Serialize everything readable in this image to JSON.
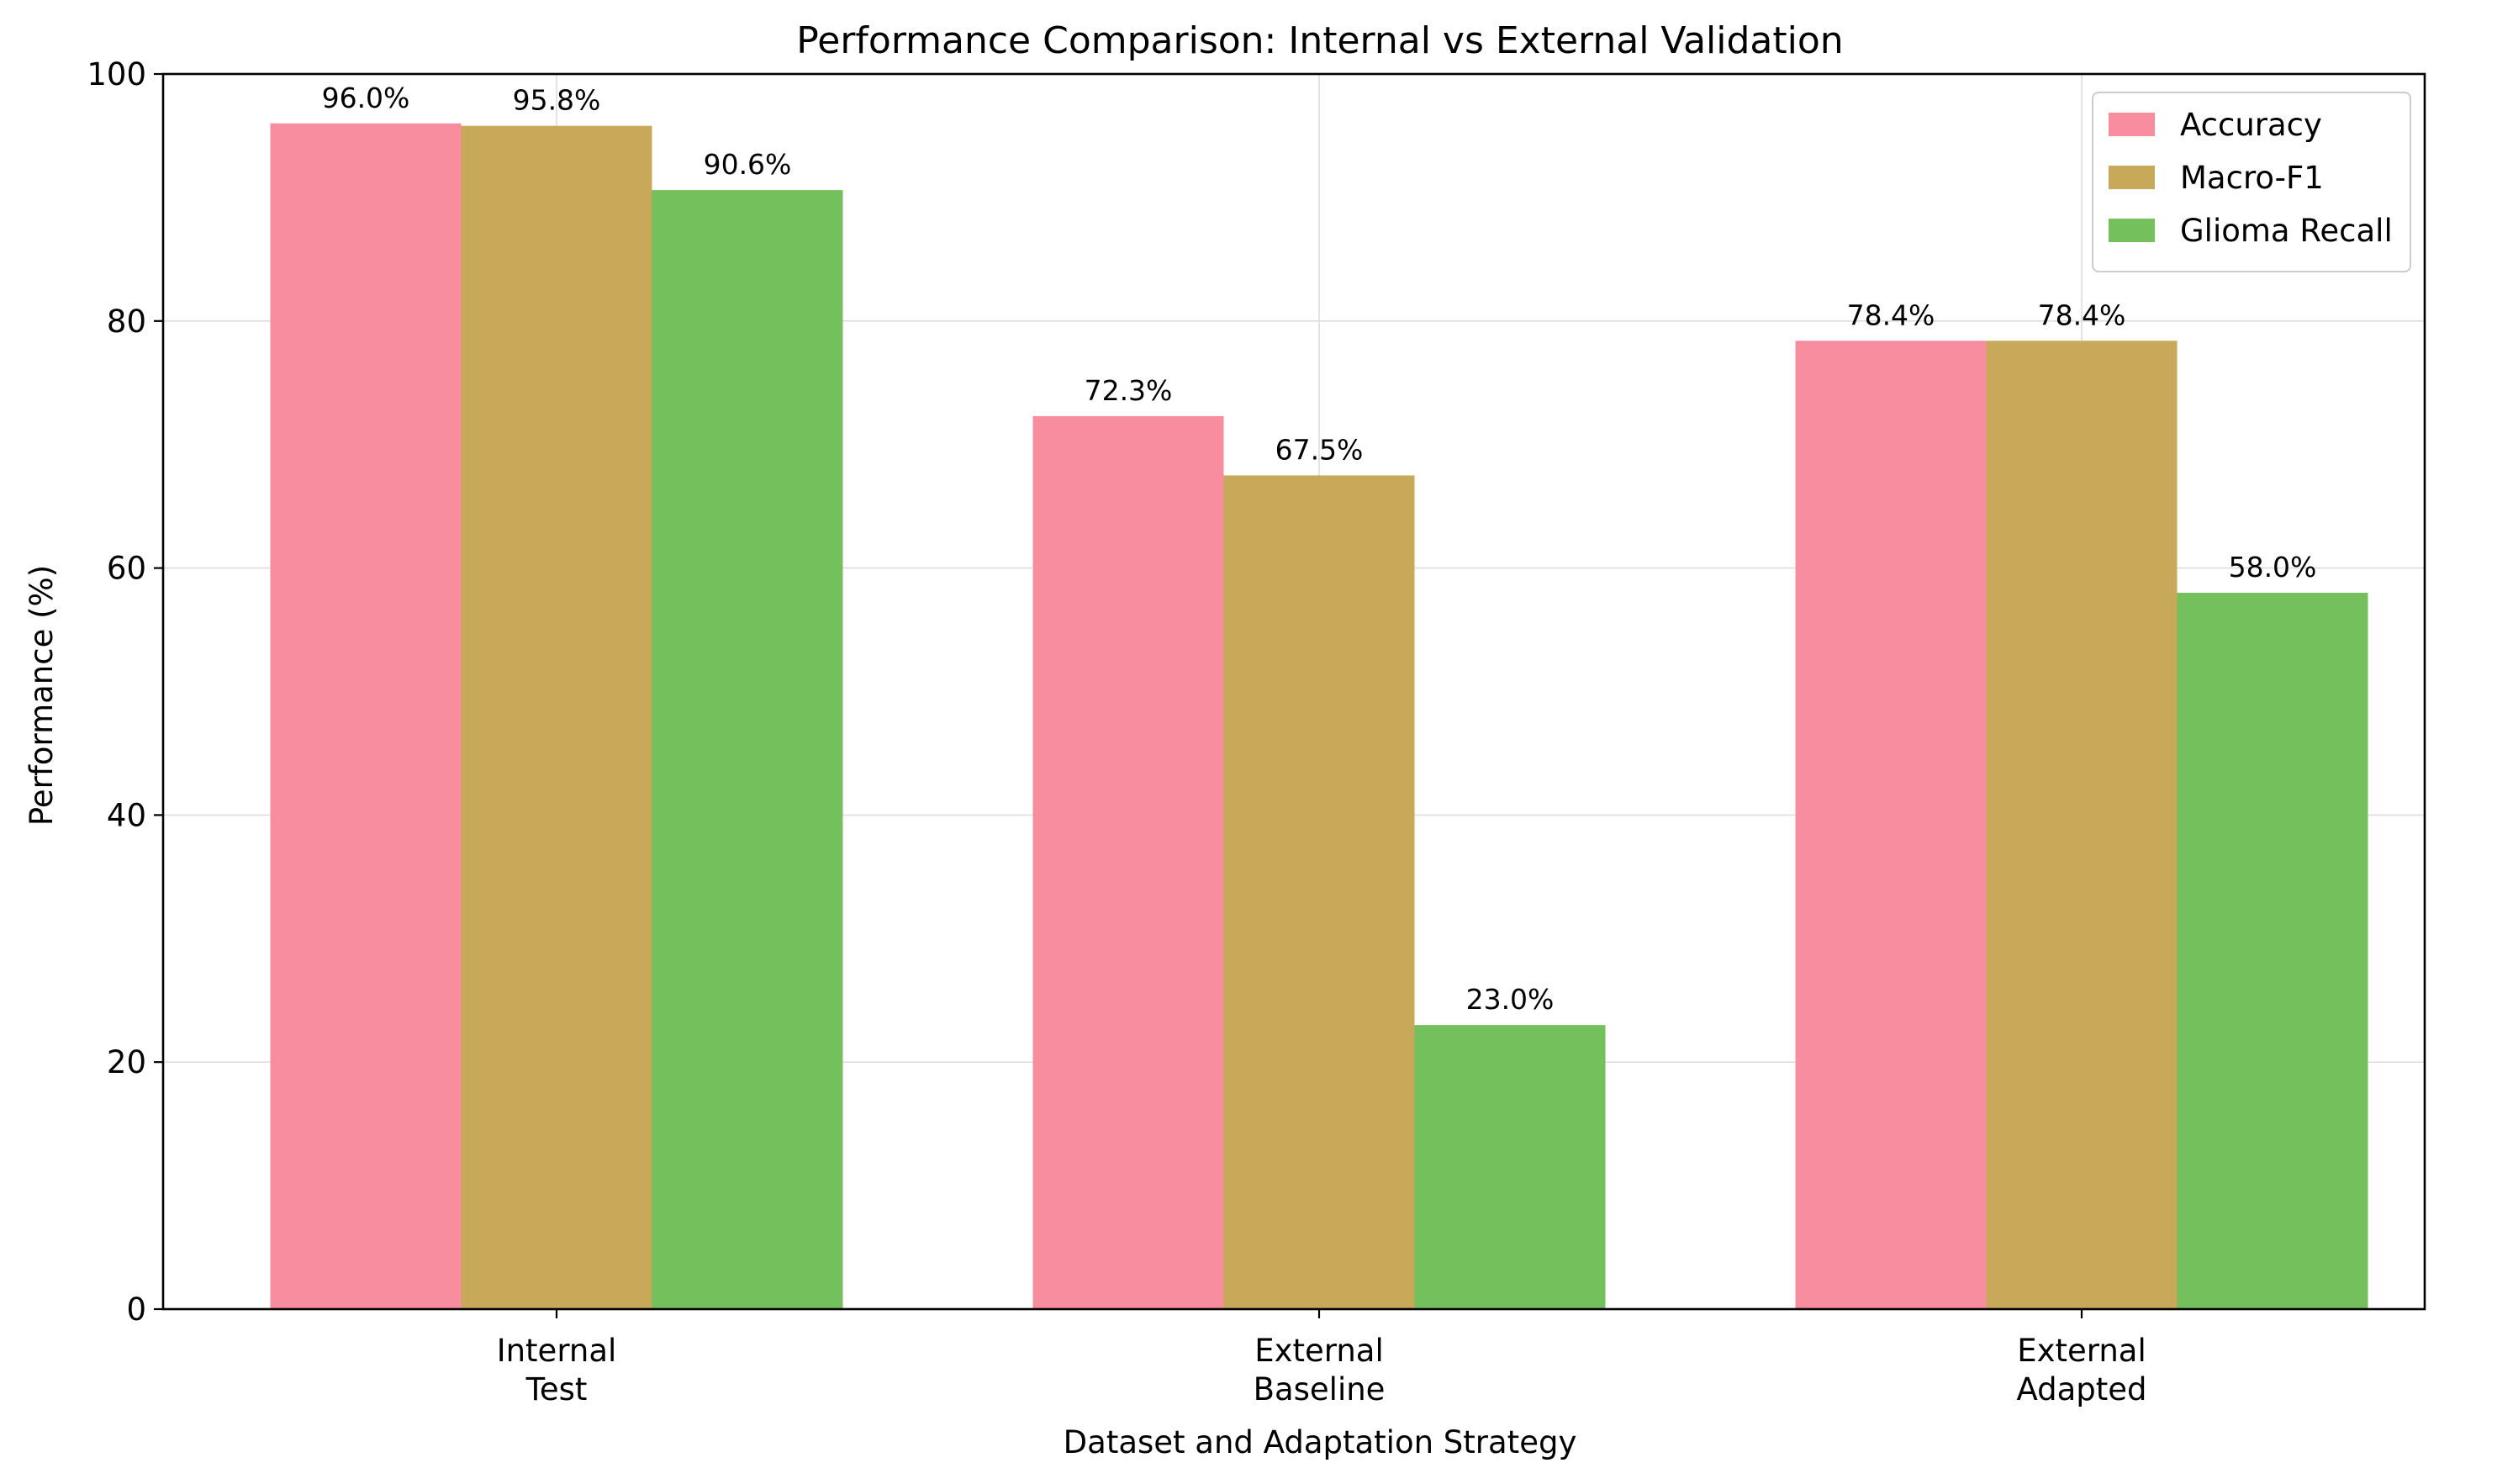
{
  "chart_data": {
    "type": "bar",
    "title": "Performance Comparison: Internal vs External Validation",
    "xlabel": "Dataset and Adaptation Strategy",
    "ylabel": "Performance (%)",
    "ylim": [
      0,
      100
    ],
    "yticks": [
      0,
      20,
      40,
      60,
      80,
      100
    ],
    "categories": [
      [
        "Internal",
        "Test"
      ],
      [
        "External",
        "Baseline"
      ],
      [
        "External",
        "Adapted"
      ]
    ],
    "series": [
      {
        "name": "Accuracy",
        "color": "#f78d9e",
        "values": [
          96.0,
          72.3,
          78.4
        ],
        "labels": [
          "96.0%",
          "72.3%",
          "78.4%"
        ]
      },
      {
        "name": "Macro-F1",
        "color": "#c8a95a",
        "values": [
          95.8,
          67.5,
          78.4
        ],
        "labels": [
          "95.8%",
          "67.5%",
          "78.4%"
        ]
      },
      {
        "name": "Glioma Recall",
        "color": "#74c05c",
        "values": [
          90.6,
          23.0,
          58.0
        ],
        "labels": [
          "90.6%",
          "23.0%",
          "58.0%"
        ]
      }
    ],
    "grid": true,
    "legend_position": "top-right"
  }
}
